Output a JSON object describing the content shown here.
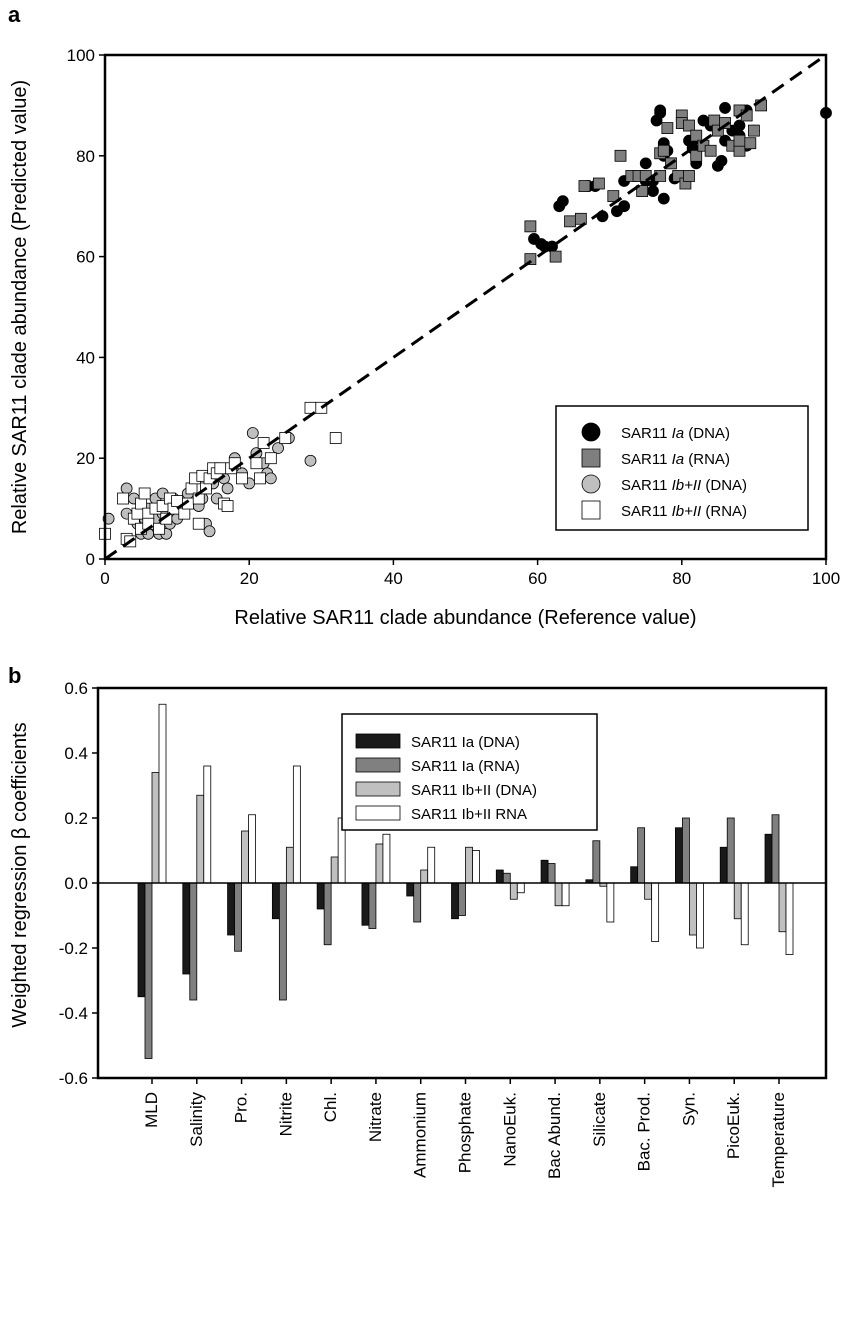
{
  "chart_data": [
    {
      "panel": "a",
      "type": "scatter",
      "xlabel": "Relative SAR11 clade abundance (Reference value)",
      "ylabel": "Relative SAR11 clade abundance (Predicted value)",
      "xlim": [
        0,
        100
      ],
      "ylim": [
        0,
        100
      ],
      "xticks": [
        "0",
        "20",
        "40",
        "60",
        "80",
        "100"
      ],
      "yticks": [
        "0",
        "20",
        "40",
        "60",
        "80",
        "100"
      ],
      "reference_line": "y = x (dashed)",
      "legend_placement": "bottom-right",
      "series": [
        {
          "name_prefix": "SAR11 ",
          "name_italic": "Ia",
          "name_suffix": " (DNA)",
          "marker": "circle",
          "color": "#000000",
          "points": [
            [
              59.5,
              63.5
            ],
            [
              60.5,
              62.5
            ],
            [
              61,
              62
            ],
            [
              62,
              62
            ],
            [
              63,
              70
            ],
            [
              63.5,
              71
            ],
            [
              67,
              74
            ],
            [
              68,
              74
            ],
            [
              69,
              68
            ],
            [
              71,
              69
            ],
            [
              72,
              75
            ],
            [
              72,
              70
            ],
            [
              75,
              75
            ],
            [
              75,
              78.5
            ],
            [
              76,
              75
            ],
            [
              76,
              73
            ],
            [
              76.5,
              87
            ],
            [
              77,
              88.5
            ],
            [
              77,
              89
            ],
            [
              77.5,
              80
            ],
            [
              77.5,
              82.5
            ],
            [
              77.5,
              71.5
            ],
            [
              78,
              81
            ],
            [
              79,
              75.5
            ],
            [
              81,
              83
            ],
            [
              81.5,
              83
            ],
            [
              81.5,
              81.5
            ],
            [
              82,
              78.5
            ],
            [
              83,
              87
            ],
            [
              84,
              86
            ],
            [
              85,
              78
            ],
            [
              85.5,
              79
            ],
            [
              86,
              83
            ],
            [
              86,
              89.5
            ],
            [
              87,
              85
            ],
            [
              88,
              86
            ],
            [
              88,
              84
            ],
            [
              89,
              82
            ],
            [
              89,
              89
            ],
            [
              90,
              85
            ],
            [
              100,
              88.5
            ]
          ]
        },
        {
          "name_prefix": "SAR11 ",
          "name_italic": "Ia",
          "name_suffix": " (RNA)",
          "marker": "square",
          "color": "#7f7f7f",
          "points": [
            [
              59,
              66
            ],
            [
              59,
              59.5
            ],
            [
              62.5,
              60
            ],
            [
              64.5,
              67
            ],
            [
              66,
              67.5
            ],
            [
              66.5,
              74
            ],
            [
              68.5,
              74.5
            ],
            [
              70.5,
              72
            ],
            [
              71.5,
              80
            ],
            [
              73,
              76
            ],
            [
              74,
              76
            ],
            [
              74.5,
              73
            ],
            [
              75,
              76
            ],
            [
              77,
              80.5
            ],
            [
              77,
              76
            ],
            [
              77.5,
              81
            ],
            [
              78,
              85.5
            ],
            [
              78.5,
              78.5
            ],
            [
              79.5,
              76
            ],
            [
              80,
              88
            ],
            [
              80,
              86.5
            ],
            [
              80.5,
              74.5
            ],
            [
              81,
              86
            ],
            [
              81,
              76
            ],
            [
              82,
              80
            ],
            [
              82,
              84
            ],
            [
              83,
              82
            ],
            [
              84,
              81
            ],
            [
              84.5,
              87
            ],
            [
              85,
              85
            ],
            [
              86,
              86.5
            ],
            [
              87,
              82
            ],
            [
              88,
              81
            ],
            [
              88,
              83
            ],
            [
              88,
              89
            ],
            [
              89,
              88
            ],
            [
              89.5,
              82.5
            ],
            [
              90,
              85
            ],
            [
              91,
              90
            ]
          ]
        },
        {
          "name_prefix": "SAR11 ",
          "name_italic": "Ib+II",
          "name_suffix": " (DNA)",
          "marker": "circle",
          "color": "#bfbfbf",
          "points": [
            [
              0.5,
              8
            ],
            [
              3,
              14
            ],
            [
              3,
              9
            ],
            [
              4,
              12
            ],
            [
              4.5,
              7
            ],
            [
              5,
              5
            ],
            [
              5.5,
              8
            ],
            [
              6,
              10
            ],
            [
              6,
              5
            ],
            [
              7,
              12
            ],
            [
              7,
              8
            ],
            [
              7.5,
              5
            ],
            [
              8,
              9
            ],
            [
              8,
              13
            ],
            [
              8.5,
              5
            ],
            [
              9,
              11
            ],
            [
              9,
              7
            ],
            [
              9.5,
              12
            ],
            [
              10,
              8
            ],
            [
              10,
              10
            ],
            [
              11,
              9
            ],
            [
              11.5,
              13
            ],
            [
              12,
              11
            ],
            [
              13,
              10.5
            ],
            [
              13.5,
              12
            ],
            [
              14,
              7
            ],
            [
              14.5,
              5.5
            ],
            [
              15,
              15
            ],
            [
              15.5,
              12
            ],
            [
              16,
              18
            ],
            [
              16.5,
              16
            ],
            [
              17,
              14
            ],
            [
              18,
              20
            ],
            [
              19,
              17
            ],
            [
              20,
              15
            ],
            [
              20.5,
              25
            ],
            [
              21,
              21
            ],
            [
              22,
              19
            ],
            [
              22.5,
              17
            ],
            [
              23,
              16
            ],
            [
              24,
              22
            ],
            [
              25.5,
              24
            ],
            [
              28.5,
              19.5
            ]
          ]
        },
        {
          "name_prefix": "SAR11 ",
          "name_italic": "Ib+II",
          "name_suffix": " (RNA)",
          "marker": "square",
          "color": "#ffffff",
          "points": [
            [
              0,
              5
            ],
            [
              2.5,
              12
            ],
            [
              3,
              4
            ],
            [
              3.5,
              3.5
            ],
            [
              4,
              8
            ],
            [
              4.5,
              9
            ],
            [
              5,
              6
            ],
            [
              5,
              11
            ],
            [
              5.5,
              13
            ],
            [
              6,
              9
            ],
            [
              6,
              7
            ],
            [
              7,
              10
            ],
            [
              7.5,
              6
            ],
            [
              8,
              10.5
            ],
            [
              8.5,
              8
            ],
            [
              9,
              12
            ],
            [
              9.5,
              10
            ],
            [
              10,
              11.5
            ],
            [
              11,
              9
            ],
            [
              11.5,
              11
            ],
            [
              12,
              14
            ],
            [
              12.5,
              16
            ],
            [
              13,
              12
            ],
            [
              13,
              7
            ],
            [
              13.5,
              16.5
            ],
            [
              14,
              14
            ],
            [
              14.5,
              16
            ],
            [
              15,
              18
            ],
            [
              15.5,
              17
            ],
            [
              16,
              18
            ],
            [
              16.5,
              11
            ],
            [
              17,
              10.5
            ],
            [
              17.5,
              18
            ],
            [
              18,
              19
            ],
            [
              19,
              16
            ],
            [
              21,
              19
            ],
            [
              21.5,
              16
            ],
            [
              22,
              23
            ],
            [
              23,
              20
            ],
            [
              25,
              24
            ],
            [
              28.5,
              30
            ],
            [
              30,
              30
            ],
            [
              32,
              24
            ]
          ]
        }
      ]
    },
    {
      "panel": "b",
      "type": "bar",
      "ylabel": "Weighted regression β coefficients",
      "ylim": [
        -0.6,
        0.6
      ],
      "yticks": [
        "-0.6",
        "-0.4",
        "-0.2",
        "0.0",
        "0.2",
        "0.4",
        "0.6"
      ],
      "legend_placement": "top-center",
      "categories": [
        "MLD",
        "Salinity",
        "Pro.",
        "Nitrite",
        "Chl.",
        "Nitrate",
        "Ammonium",
        "Phosphate",
        "NanoEuk.",
        "Bac Abund.",
        "Silicate",
        "Bac. Prod.",
        "Syn.",
        "PicoEuk.",
        "Temperature"
      ],
      "series": [
        {
          "name": "SAR11 Ia (DNA)",
          "color": "#1a1a1a",
          "values": [
            -0.35,
            -0.28,
            -0.16,
            -0.11,
            -0.08,
            -0.13,
            -0.04,
            -0.11,
            0.04,
            0.07,
            0.01,
            0.05,
            0.17,
            0.11,
            0.15
          ]
        },
        {
          "name": "SAR11 Ia (RNA)",
          "color": "#808080",
          "values": [
            -0.54,
            -0.36,
            -0.21,
            -0.36,
            -0.19,
            -0.14,
            -0.12,
            -0.1,
            0.03,
            0.06,
            0.13,
            0.17,
            0.2,
            0.2,
            0.21
          ]
        },
        {
          "name": "SAR11 Ib+II (DNA)",
          "color": "#c0c0c0",
          "values": [
            0.34,
            0.27,
            0.16,
            0.11,
            0.08,
            0.12,
            0.04,
            0.11,
            -0.05,
            -0.07,
            -0.01,
            -0.05,
            -0.16,
            -0.11,
            -0.15
          ]
        },
        {
          "name": "SAR11 Ib+II RNA",
          "color": "#ffffff",
          "values": [
            0.55,
            0.36,
            0.21,
            0.36,
            0.2,
            0.15,
            0.11,
            0.1,
            -0.03,
            -0.07,
            -0.12,
            -0.18,
            -0.2,
            -0.19,
            -0.22
          ]
        }
      ]
    }
  ]
}
